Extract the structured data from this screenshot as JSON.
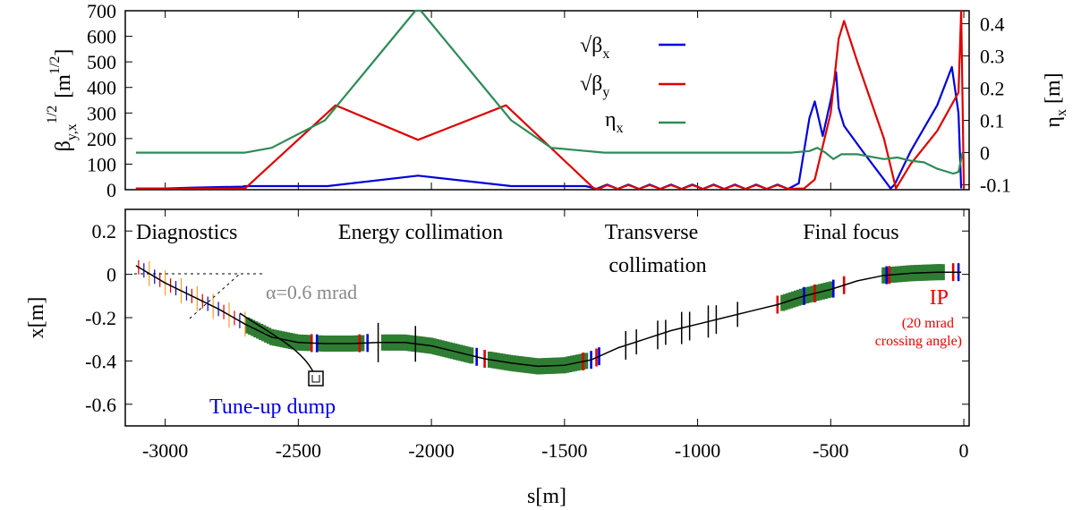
{
  "chart_data": [
    {
      "type": "line",
      "ylabel": "β",
      "ylabel_sub": "y,x",
      "ylabel_sup": "1/2",
      "ylabel_unit": "[m",
      "ylabel_unit_sup": "1/2",
      "ylabel_unit_close": "]",
      "y2label": "η",
      "y2label_sub": "x",
      "y2label_unit": "[m]",
      "xlim": [
        -3150,
        20
      ],
      "ylim": [
        0,
        700
      ],
      "y2lim": [
        -0.115,
        0.44
      ],
      "yticks": [
        "0",
        "100",
        "200",
        "300",
        "400",
        "500",
        "600",
        "700"
      ],
      "y2ticks": [
        "-0.1",
        "0",
        "0.1",
        "0.2",
        "0.3",
        "0.4"
      ],
      "legend_position": "top-center",
      "series": [
        {
          "name": "√β",
          "name_sub": "x",
          "color": "#0000dd",
          "axis": "left",
          "x": [
            -3110,
            -3000,
            -2900,
            -2710,
            -2700,
            -2390,
            -2050,
            -1700,
            -1420,
            -1380,
            -1340,
            -1300,
            -1260,
            -1220,
            -1180,
            -1140,
            -1100,
            -1060,
            -1020,
            -980,
            -940,
            -900,
            -860,
            -820,
            -780,
            -740,
            -700,
            -660,
            -620,
            -580,
            -560,
            -530,
            -500,
            -480,
            -470,
            -450,
            -380,
            -300,
            -275,
            -260,
            -200,
            -100,
            -45,
            -20,
            -10
          ],
          "values": [
            5,
            5,
            8,
            12,
            14,
            14,
            55,
            14,
            14,
            3,
            20,
            3,
            20,
            3,
            20,
            3,
            20,
            3,
            20,
            3,
            20,
            3,
            20,
            3,
            20,
            3,
            20,
            3,
            25,
            280,
            345,
            210,
            350,
            460,
            320,
            250,
            150,
            40,
            5,
            20,
            150,
            330,
            480,
            300,
            5
          ]
        },
        {
          "name": "√β",
          "name_sub": "y",
          "color": "#dd0000",
          "axis": "left",
          "x": [
            -3110,
            -3000,
            -2900,
            -2720,
            -2700,
            -2360,
            -2050,
            -1720,
            -1390,
            -1370,
            -1340,
            -1300,
            -1260,
            -1220,
            -1180,
            -1140,
            -1100,
            -1060,
            -1020,
            -980,
            -940,
            -900,
            -860,
            -820,
            -780,
            -740,
            -700,
            -660,
            -600,
            -560,
            -500,
            -470,
            -450,
            -400,
            -300,
            -255,
            -200,
            -100,
            -20,
            -10,
            0
          ],
          "values": [
            5,
            5,
            5,
            5,
            5,
            330,
            195,
            330,
            5,
            3,
            18,
            3,
            18,
            3,
            18,
            3,
            18,
            3,
            18,
            3,
            18,
            3,
            18,
            3,
            18,
            3,
            18,
            3,
            5,
            40,
            300,
            590,
            660,
            500,
            200,
            5,
            100,
            230,
            380,
            700,
            5
          ]
        },
        {
          "name": "η",
          "name_sub": "x",
          "color": "#2e8b57",
          "axis": "right",
          "x": [
            -3110,
            -2700,
            -2600,
            -2400,
            -2250,
            -2060,
            -2040,
            -1850,
            -1700,
            -1550,
            -1350,
            -1000,
            -800,
            -650,
            -580,
            -550,
            -520,
            -490,
            -460,
            -400,
            -300,
            -250,
            -200,
            -150,
            -100,
            -40,
            -20,
            -5
          ],
          "values": [
            0,
            0,
            0.015,
            0.1,
            0.25,
            0.44,
            0.44,
            0.25,
            0.1,
            0.015,
            0,
            0,
            0,
            0,
            0.005,
            0.015,
            0,
            -0.02,
            -0.005,
            -0.005,
            -0.02,
            -0.015,
            -0.025,
            -0.03,
            -0.05,
            -0.065,
            -0.06,
            0
          ]
        }
      ]
    },
    {
      "type": "line",
      "xlabel": "s[m]",
      "ylabel": "x[m]",
      "xlim": [
        -3150,
        20
      ],
      "ylim": [
        -0.7,
        0.3
      ],
      "xticks": [
        "-3000",
        "-2500",
        "-2000",
        "-1500",
        "-1000",
        "-500",
        "0"
      ],
      "yticks": [
        "0.2",
        "0",
        "-0.2",
        "-0.4",
        "-0.6"
      ],
      "series": [
        {
          "name": "",
          "color": "#000000",
          "x": [
            -3110,
            -3000,
            -2900,
            -2800,
            -2700,
            -2600,
            -2500,
            -2400,
            -2300,
            -2200,
            -2100,
            -2000,
            -1900,
            -1800,
            -1700,
            -1600,
            -1500,
            -1400,
            -1300,
            -1200,
            -1100,
            -1000,
            -900,
            -800,
            -700,
            -600,
            -500,
            -400,
            -300,
            -200,
            -100,
            -10
          ],
          "values": [
            0.04,
            -0.04,
            -0.1,
            -0.16,
            -0.23,
            -0.29,
            -0.315,
            -0.32,
            -0.32,
            -0.315,
            -0.315,
            -0.33,
            -0.36,
            -0.39,
            -0.41,
            -0.425,
            -0.42,
            -0.395,
            -0.34,
            -0.3,
            -0.26,
            -0.23,
            -0.2,
            -0.17,
            -0.14,
            -0.1,
            -0.07,
            -0.03,
            -0.005,
            0.005,
            0.01,
            0.01
          ]
        }
      ],
      "sections": [
        "Diagnostics",
        "Energy collimation",
        "Transverse",
        "collimation",
        "Final focus"
      ],
      "annotations": {
        "angle": "α=0.6 mrad",
        "dump": "Tune-up dump",
        "ip": "IP",
        "ip_note1": "(20 mrad",
        "ip_note2": "crossing angle)"
      },
      "colors": {
        "dipole": "#2e7d32",
        "quad_focus": "#dd0000",
        "quad_defocus": "#0000dd",
        "collimator": "#000000",
        "diag": "#f0a020",
        "angle_text": "#888888",
        "dump_text": "#0000dd",
        "ip_text": "#ee0000"
      }
    }
  ]
}
